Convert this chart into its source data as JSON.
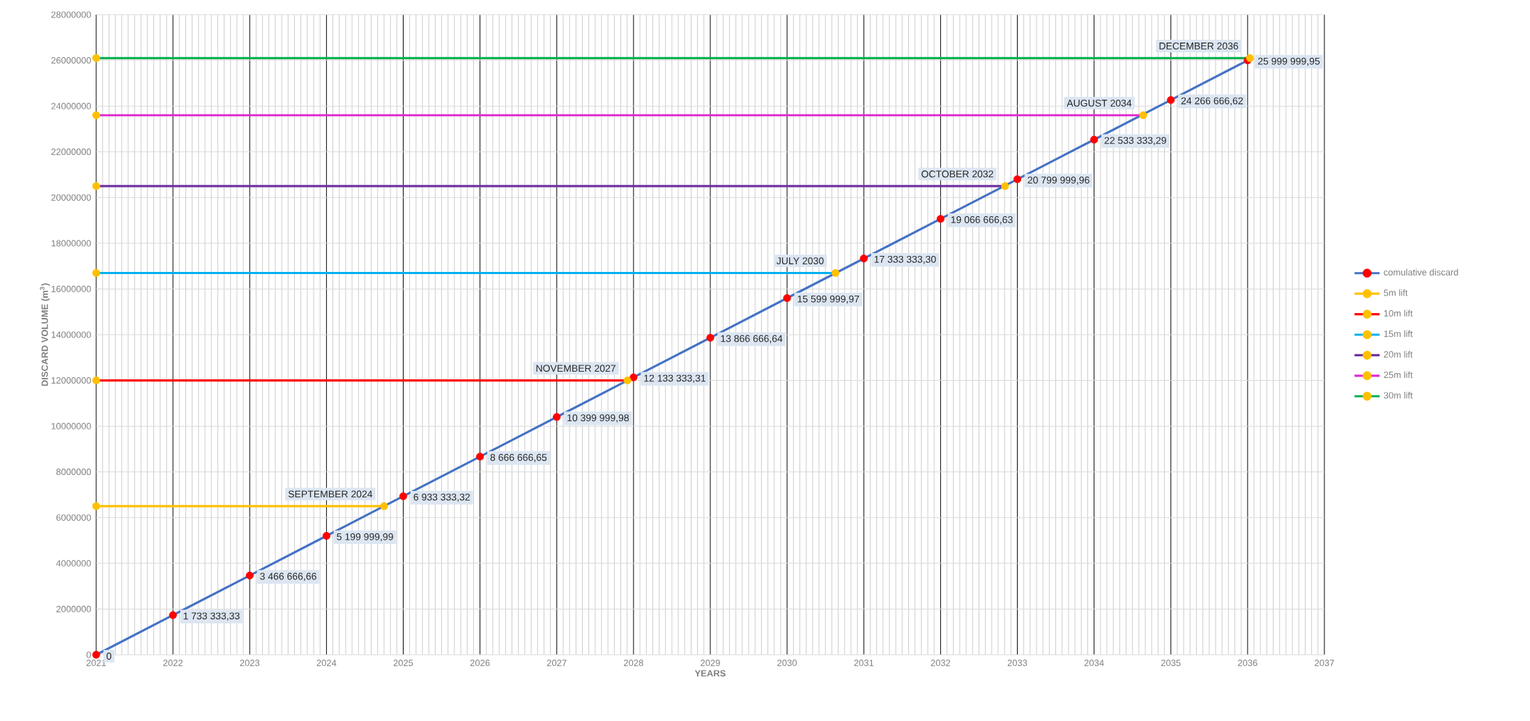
{
  "chart_data": {
    "type": "line",
    "xlabel": "YEARS",
    "ylabel": "DISCARD VOLUME (m$^{3}$)",
    "xlim": [
      2021,
      2037
    ],
    "xticks": [
      2021,
      2022,
      2023,
      2024,
      2025,
      2026,
      2027,
      2028,
      2029,
      2030,
      2031,
      2032,
      2033,
      2034,
      2035,
      2036,
      2037
    ],
    "ylim": [
      0,
      28000000
    ],
    "yticks": [
      0,
      2000000,
      4000000,
      6000000,
      8000000,
      10000000,
      12000000,
      14000000,
      16000000,
      18000000,
      20000000,
      22000000,
      24000000,
      26000000,
      28000000
    ],
    "grid": true,
    "legend": "right",
    "marker": "circle",
    "annotations": [
      {
        "text": "SEPTEMBER 2024",
        "x": 2024.75,
        "y": 6500000
      },
      {
        "text": "NOVEMBER 2027",
        "x": 2027.92,
        "y": 12000000
      },
      {
        "text": "JULY 2030",
        "x": 2030.63,
        "y": 16700000
      },
      {
        "text": "OCTOBER 2032",
        "x": 2032.84,
        "y": 20500000
      },
      {
        "text": "AUGUST 2034",
        "x": 2034.64,
        "y": 23600000
      },
      {
        "text": "DECEMBER 2036",
        "x": 2036.03,
        "y": 26100000
      }
    ],
    "series": [
      {
        "name": "comulative discard",
        "color": "#4472c4",
        "colors": [
          "#ff0000",
          "#ff0000",
          "#ff0000",
          "#ff0000",
          "#ff0000",
          "#ff0000",
          "#ff0000",
          "#ff0000",
          "#ff0000",
          "#ff0000",
          "#ff0000",
          "#ff0000",
          "#ff0000",
          "#ff0000",
          "#ff0000",
          "#ff0000"
        ],
        "x": [
          2021,
          2022,
          2023,
          2024,
          2025,
          2026,
          2027,
          2028,
          2029,
          2030,
          2031,
          2032,
          2033,
          2034,
          2035,
          2036
        ],
        "values": [
          0,
          1733333.33,
          3466666.66,
          5199999.99,
          6933333.32,
          8666666.65,
          10399999.98,
          12133333.31,
          13866666.64,
          15599999.97,
          17333333.3,
          19066666.63,
          20799999.96,
          22533333.29,
          24266666.62,
          25999999.95
        ],
        "value_labels": [
          "0",
          "1 733 333,33",
          "3 466 666,66",
          "5 199 999,99",
          "6 933 333,32",
          "8 666 666,65",
          "10 399 999,98",
          "12 133 333,31",
          "13 866 666,64",
          "15 599 999,97",
          "17 333 333,30",
          "19 066 666,63",
          "20 799 999,96",
          "22 533 333,29",
          "24 266 666,62",
          "25 999 999,95"
        ]
      },
      {
        "name": "5m lift",
        "color": "#ffc000",
        "colors": [
          "#ffc000",
          "#ffc000"
        ],
        "x": [
          2021,
          2024.75
        ],
        "values": [
          6500000,
          6500000
        ]
      },
      {
        "name": "10m lift",
        "color": "#ff0000",
        "colors": [
          "#ffc000",
          "#ffc000"
        ],
        "x": [
          2021,
          2027.92
        ],
        "values": [
          12000000,
          12000000
        ]
      },
      {
        "name": "15m lift",
        "color": "#00b0f0",
        "colors": [
          "#ffc000",
          "#ffc000"
        ],
        "x": [
          2021,
          2030.63
        ],
        "values": [
          16700000,
          16700000
        ]
      },
      {
        "name": "20m lift",
        "color": "#7030a0",
        "colors": [
          "#ffc000",
          "#ffc000"
        ],
        "x": [
          2021,
          2032.84
        ],
        "values": [
          20500000,
          20500000
        ]
      },
      {
        "name": "25m lift",
        "color": "#e02ad0",
        "colors": [
          "#ffc000",
          "#ffc000"
        ],
        "x": [
          2021,
          2034.64
        ],
        "values": [
          23600000,
          23600000
        ]
      },
      {
        "name": "30m lift",
        "color": "#00b050",
        "colors": [
          "#ffc000",
          "#ffc000"
        ],
        "x": [
          2021,
          2036.03
        ],
        "values": [
          26100000,
          26100000
        ]
      }
    ]
  }
}
